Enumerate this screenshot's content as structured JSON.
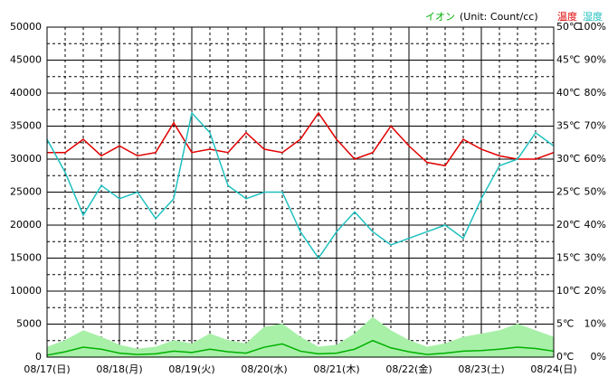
{
  "chart_data": {
    "type": "line",
    "unit_label": "(Unit: Count/cc)",
    "categories": [
      "08/17(日)",
      null,
      null,
      null,
      "08/18(月)",
      null,
      null,
      null,
      "08/19(火)",
      null,
      null,
      null,
      "08/20(水)",
      null,
      null,
      null,
      "08/21(木)",
      null,
      null,
      null,
      "08/22(金)",
      null,
      null,
      null,
      "08/23(土)",
      null,
      null,
      null,
      "08/24(日)"
    ],
    "ylim": [
      0,
      50000
    ],
    "yticks": [
      0,
      5000,
      10000,
      15000,
      20000,
      25000,
      30000,
      35000,
      40000,
      45000,
      50000
    ],
    "yminorticks": [
      2500,
      7500,
      12500,
      17500,
      22500,
      27500,
      32500,
      37500,
      42500,
      47500
    ],
    "y2lim": [
      0,
      50
    ],
    "y2ticks": [
      {
        "value": 0,
        "label": "0℃"
      },
      {
        "value": 5,
        "label": "5℃"
      },
      {
        "value": 10,
        "label": "10℃"
      },
      {
        "value": 15,
        "label": "15℃"
      },
      {
        "value": 20,
        "label": "20℃"
      },
      {
        "value": 25,
        "label": "25℃"
      },
      {
        "value": 30,
        "label": "30℃"
      },
      {
        "value": 35,
        "label": "35℃"
      },
      {
        "value": 40,
        "label": "40℃"
      },
      {
        "value": 45,
        "label": "45℃"
      },
      {
        "value": 50,
        "label": "50℃"
      }
    ],
    "y3lim": [
      0,
      100
    ],
    "y3ticks": [
      {
        "value": 0,
        "label": "0%"
      },
      {
        "value": 10,
        "label": "10%"
      },
      {
        "value": 20,
        "label": "20%"
      },
      {
        "value": 30,
        "label": "30%"
      },
      {
        "value": 40,
        "label": "40%"
      },
      {
        "value": 50,
        "label": "50%"
      },
      {
        "value": 60,
        "label": "60%"
      },
      {
        "value": 70,
        "label": "70%"
      },
      {
        "value": 80,
        "label": "80%"
      },
      {
        "value": 90,
        "label": "90%"
      },
      {
        "value": 100,
        "label": "100%"
      }
    ],
    "grid": true,
    "series": [
      {
        "color": "#a8f0a8",
        "fill": true,
        "values": [
          1500,
          2500,
          4000,
          3000,
          1800,
          1200,
          1500,
          2500,
          2000,
          3500,
          2500,
          2000,
          4500,
          5000,
          3000,
          1500,
          1800,
          3500,
          6000,
          4000,
          2500,
          1500,
          2000,
          3000,
          3500,
          4000,
          5000,
          4000,
          3000
        ]
      },
      {
        "name": "イオン",
        "color": "#00b000",
        "values": [
          300,
          800,
          1500,
          1200,
          600,
          400,
          500,
          900,
          700,
          1200,
          800,
          600,
          1500,
          2000,
          900,
          500,
          600,
          1200,
          2500,
          1400,
          800,
          400,
          600,
          900,
          1000,
          1200,
          1500,
          1300,
          900
        ]
      },
      {
        "name": "温度",
        "color": "#e00000",
        "axis": "y2",
        "values": [
          31,
          31,
          33,
          30.5,
          32,
          30.5,
          31,
          35.5,
          31,
          31.5,
          31,
          34,
          31.5,
          31,
          33,
          37,
          33,
          30,
          31,
          35,
          32,
          29.5,
          29,
          33,
          31.5,
          30.5,
          30,
          30,
          31
        ]
      },
      {
        "name": "湿度",
        "color": "#20c0c0",
        "axis": "y3",
        "values": [
          66,
          56,
          43,
          52,
          48,
          50,
          42,
          48,
          74,
          68,
          52,
          48,
          50,
          50,
          38,
          30,
          38,
          44,
          38,
          34,
          36,
          38,
          40,
          36,
          48,
          58,
          60,
          68,
          64
        ]
      }
    ]
  }
}
